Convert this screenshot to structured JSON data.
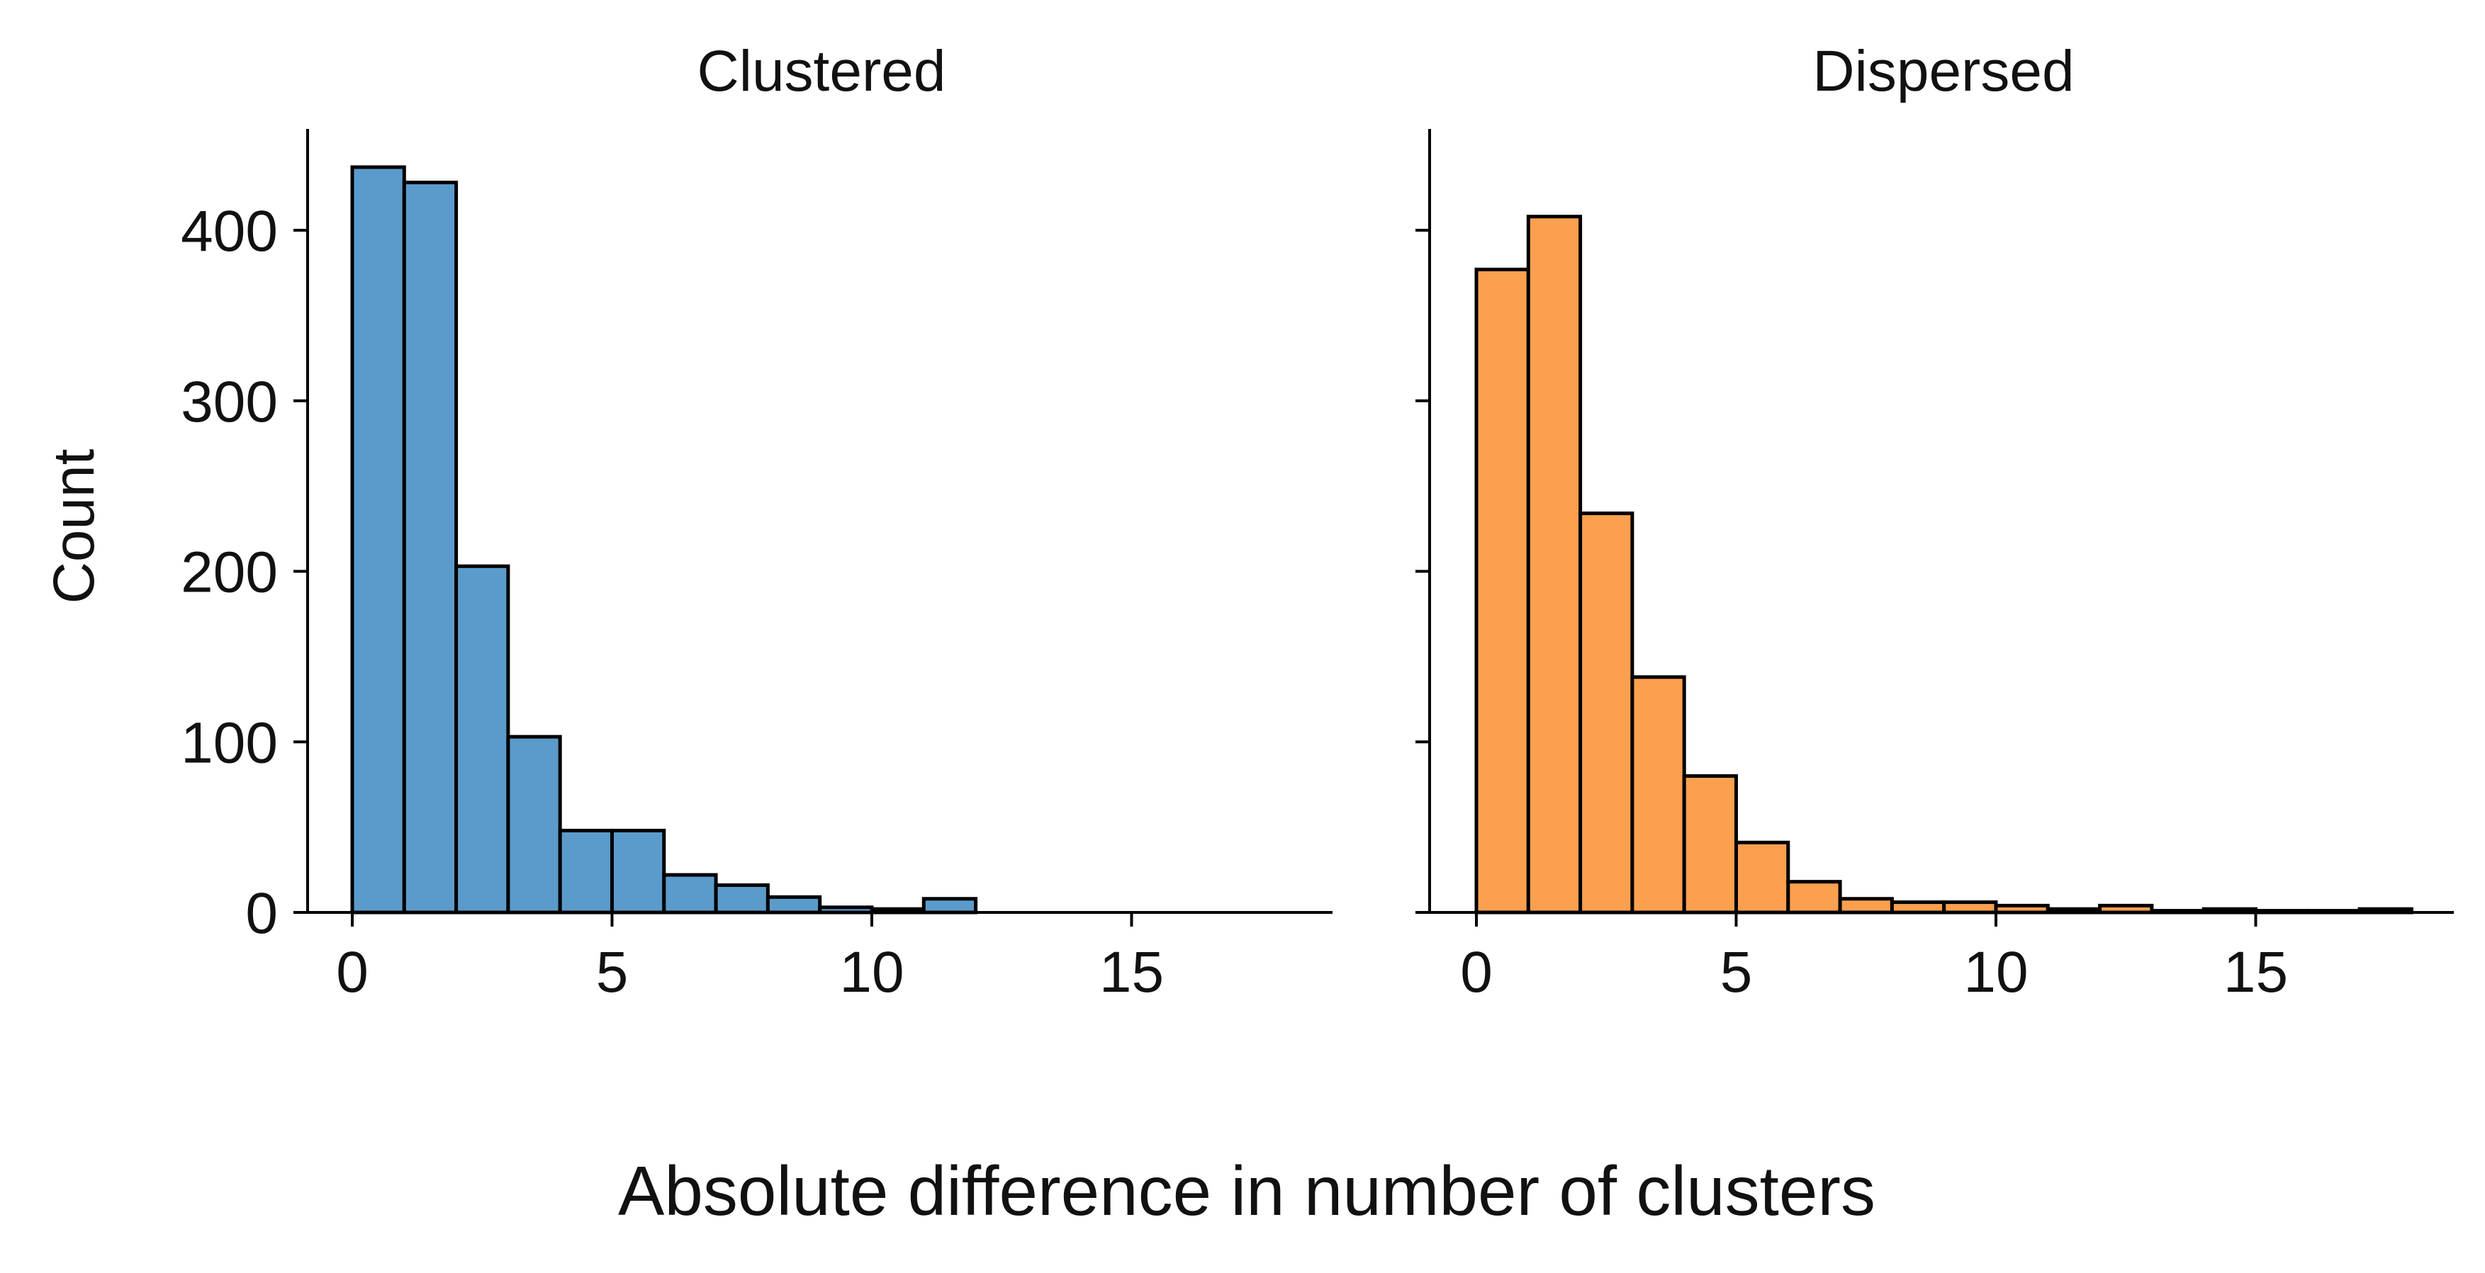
{
  "figure": {
    "xlabel": "Absolute difference in number of clusters",
    "ylabel": "Count"
  },
  "chart_data": [
    {
      "type": "bar",
      "subtype": "histogram",
      "title": "Clustered",
      "xlabel": "",
      "ylabel": "Count",
      "color": "#5b9bcb",
      "edge_color": "#000000",
      "xlim": [
        -1,
        18.5
      ],
      "ylim": [
        0,
        460
      ],
      "bin_width": 1,
      "x_ticks": [
        0,
        5,
        10,
        15
      ],
      "y_ticks": [
        0,
        100,
        200,
        300,
        400
      ],
      "bins": [
        {
          "x": 0,
          "value": 437
        },
        {
          "x": 1,
          "value": 428
        },
        {
          "x": 2,
          "value": 203
        },
        {
          "x": 3,
          "value": 103
        },
        {
          "x": 4,
          "value": 48
        },
        {
          "x": 5,
          "value": 48
        },
        {
          "x": 6,
          "value": 22
        },
        {
          "x": 7,
          "value": 16
        },
        {
          "x": 8,
          "value": 9
        },
        {
          "x": 9,
          "value": 3
        },
        {
          "x": 10,
          "value": 2
        },
        {
          "x": 11,
          "value": 8
        }
      ]
    },
    {
      "type": "bar",
      "subtype": "histogram",
      "title": "Dispersed",
      "xlabel": "",
      "ylabel": "",
      "color": "#fba04e",
      "edge_color": "#000000",
      "xlim": [
        -1,
        18.5
      ],
      "ylim": [
        0,
        460
      ],
      "bin_width": 1,
      "x_ticks": [
        0,
        5,
        10,
        15
      ],
      "y_ticks": [
        0,
        100,
        200,
        300,
        400
      ],
      "y_tick_labels_shown": false,
      "bins": [
        {
          "x": 0,
          "value": 377
        },
        {
          "x": 1,
          "value": 408
        },
        {
          "x": 2,
          "value": 234
        },
        {
          "x": 3,
          "value": 138
        },
        {
          "x": 4,
          "value": 80
        },
        {
          "x": 5,
          "value": 41
        },
        {
          "x": 6,
          "value": 18
        },
        {
          "x": 7,
          "value": 8
        },
        {
          "x": 8,
          "value": 6
        },
        {
          "x": 9,
          "value": 6
        },
        {
          "x": 10,
          "value": 4
        },
        {
          "x": 11,
          "value": 2
        },
        {
          "x": 12,
          "value": 4
        },
        {
          "x": 13,
          "value": 1
        },
        {
          "x": 14,
          "value": 2
        },
        {
          "x": 15,
          "value": 1
        },
        {
          "x": 16,
          "value": 1
        },
        {
          "x": 17,
          "value": 2
        }
      ]
    }
  ]
}
